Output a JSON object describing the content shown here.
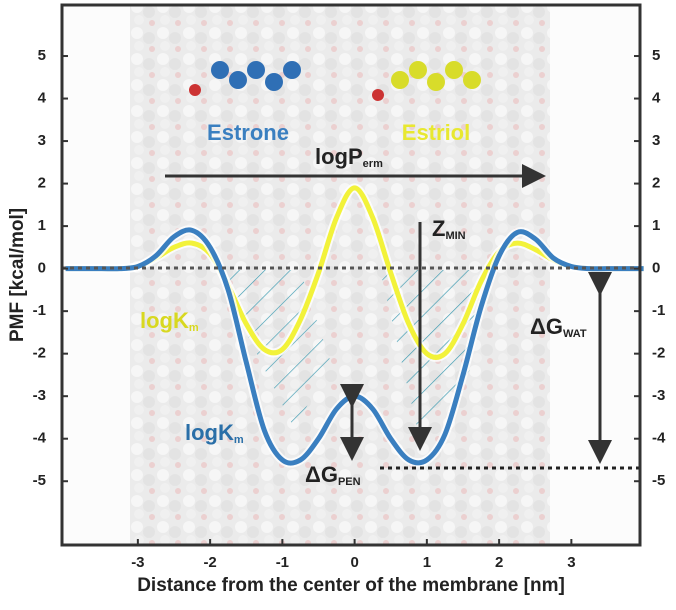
{
  "chart_data": {
    "type": "line",
    "x_label": "Distance from the center of the membrane [nm]",
    "y_label": "PMF [kcal/mol]",
    "x": [
      -4,
      -3.75,
      -3.5,
      -3.25,
      -3,
      -2.75,
      -2.5,
      -2.25,
      -2,
      -1.75,
      -1.5,
      -1.25,
      -1,
      -0.75,
      -0.5,
      -0.25,
      0,
      0.25,
      0.5,
      0.75,
      1,
      1.25,
      1.5,
      1.75,
      2,
      2.25,
      2.5,
      2.75,
      3,
      3.25,
      3.5,
      3.75,
      4
    ],
    "series": [
      {
        "name": "Estrone",
        "color": "#3a7fc0",
        "values": [
          0,
          0,
          0,
          0,
          0.05,
          0.3,
          0.75,
          0.9,
          0.5,
          -0.5,
          -2.2,
          -3.8,
          -4.5,
          -4.5,
          -4.0,
          -3.3,
          -3.0,
          -3.3,
          -4.0,
          -4.5,
          -4.5,
          -3.9,
          -2.5,
          -0.9,
          0.3,
          0.85,
          0.7,
          0.25,
          0.05,
          0,
          0,
          0,
          0
        ]
      },
      {
        "name": "Estriol",
        "color": "#f2f23a",
        "values": [
          0,
          0,
          0,
          0,
          0.05,
          0.25,
          0.5,
          0.6,
          0.35,
          -0.4,
          -1.3,
          -1.9,
          -1.9,
          -1.2,
          -0.1,
          1.2,
          1.9,
          1.2,
          -0.1,
          -1.3,
          -2.0,
          -2.0,
          -1.3,
          -0.3,
          0.4,
          0.6,
          0.45,
          0.2,
          0.05,
          0,
          0,
          0,
          0
        ]
      }
    ],
    "xlim": [
      -4.05,
      3.95
    ],
    "ylim": [
      -6.5,
      6.2
    ],
    "xticks": [
      -3,
      -2,
      -1,
      0,
      1,
      2,
      3
    ],
    "yticks": [
      -5,
      -4,
      -3,
      -2,
      -1,
      0,
      1,
      2,
      3,
      4,
      5
    ],
    "annotations": [
      {
        "text": "logP",
        "sub": "erm"
      },
      {
        "text": "Z",
        "sub": "MIN"
      },
      {
        "text": "ΔG",
        "sub": "WAT"
      },
      {
        "text": "logK",
        "sub": "m"
      },
      {
        "text": "logK",
        "sub": "m"
      },
      {
        "text": "ΔG",
        "sub": "PEN"
      }
    ]
  }
}
